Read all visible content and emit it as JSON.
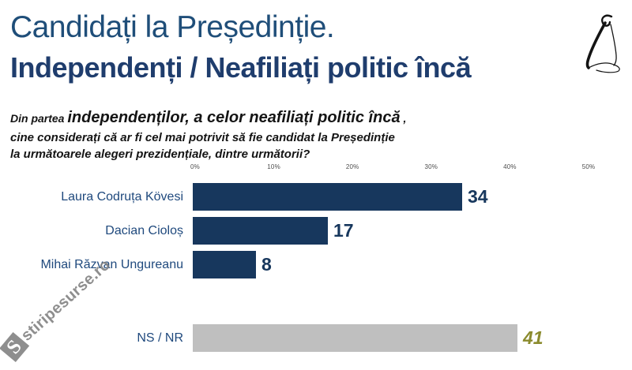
{
  "header": {
    "title_line1": "Candidați la Președinție.",
    "title_line2": "Independenți / Neafiliați politic încă"
  },
  "question": {
    "prefix": "Din partea",
    "emphasis": "independenților, a celor neafiliați politic încă",
    "suffix": ",",
    "line2": "cine considerați că ar fi cel mai potrivit să fie candidat la Președinție",
    "line3": "la următoarele alegeri prezidențiale, dintre următorii?"
  },
  "chart_data": {
    "type": "bar",
    "orientation": "horizontal",
    "title": "",
    "xlabel": "",
    "ylabel": "",
    "x_ticks": [
      "0%",
      "10%",
      "20%",
      "30%",
      "40%",
      "50%"
    ],
    "x_max": 50,
    "grid": false,
    "legend": "none",
    "categories": [
      "Laura Codruța Kövesi",
      "Dacian Cioloș",
      "Mihai Răzvan Ungureanu",
      "NS / NR"
    ],
    "values": [
      34,
      17,
      8,
      41
    ],
    "bars": [
      {
        "label": "Laura Codruța Kövesi",
        "value": 34,
        "group": "candidate"
      },
      {
        "label": "Dacian Cioloș",
        "value": 17,
        "group": "candidate"
      },
      {
        "label": "Mihai Răzvan Ungureanu",
        "value": 8,
        "group": "candidate"
      },
      {
        "label": "NS / NR",
        "value": 41,
        "group": "nsnr"
      }
    ],
    "colors": {
      "candidate_bar": "#17375D",
      "candidate_value": "#17375D",
      "nsnr_bar": "#BFBFBF",
      "nsnr_value": "#8B8B2E",
      "label": "#1F497D",
      "tick": "#4d4d4d"
    }
  },
  "watermark": {
    "logo_letter": "S",
    "text": "stiripesurse.ro"
  }
}
